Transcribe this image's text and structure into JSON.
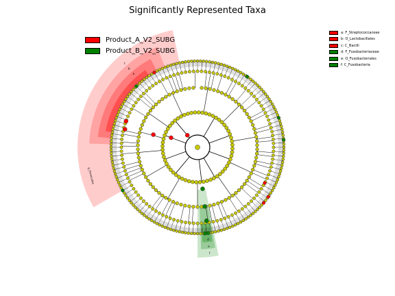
{
  "title": "Significantly Represented Taxa",
  "chart_data": {
    "type": "cladogram",
    "title": "Significantly Represented Taxa",
    "classes": [
      {
        "name": "Product_A_V2_SUBG",
        "color": "#ff0000"
      },
      {
        "name": "Product_B_V2_SUBG",
        "color": "#008000"
      }
    ],
    "highlighted_clades": [
      {
        "key": "a",
        "label": "F_Streptococcaceae",
        "class": "Product_A_V2_SUBG"
      },
      {
        "key": "b",
        "label": "O_Lactobacillales",
        "class": "Product_A_V2_SUBG"
      },
      {
        "key": "c",
        "label": "C_Bacilli",
        "class": "Product_A_V2_SUBG"
      },
      {
        "key": "d",
        "label": "F_Fusobacteriaceae",
        "class": "Product_B_V2_SUBG"
      },
      {
        "key": "e",
        "label": "O_Fusobacteriales",
        "class": "Product_B_V2_SUBG"
      },
      {
        "key": "f",
        "label": "C_Fusobacteria",
        "class": "Product_B_V2_SUBG"
      }
    ],
    "outer_labels": [
      "p_Firmicutes"
    ],
    "node_color_default": "#c8c800"
  }
}
